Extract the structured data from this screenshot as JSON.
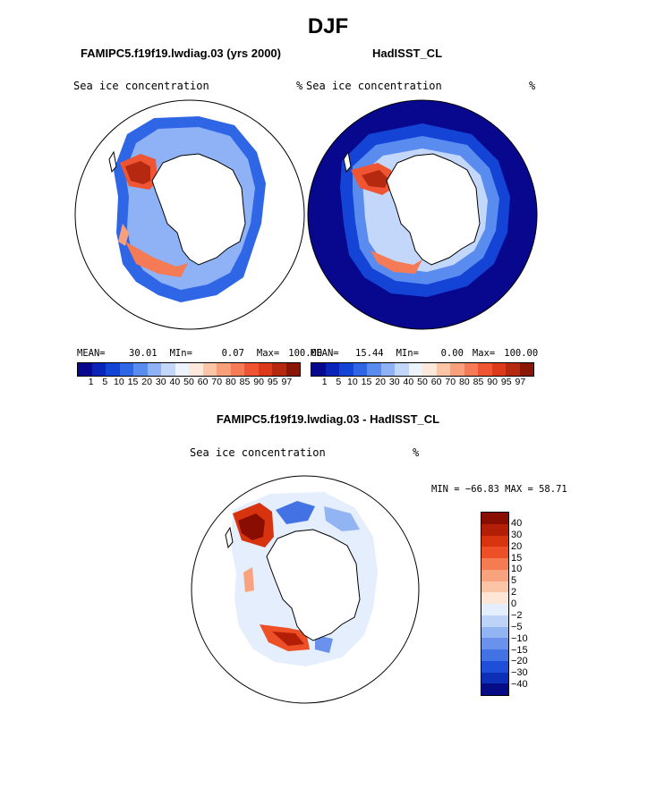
{
  "figure": {
    "title": "DJF"
  },
  "panels": [
    {
      "id": "model",
      "header": "FAMIPC5.f19f19.lwdiag.03 (yrs 2000)",
      "variable": "Sea ice concentration",
      "units": "%",
      "stats": {
        "mean_label": "MEAN=",
        "mean_value": "30.01",
        "min_label": "MIn=",
        "min_value": "0.07",
        "max_label": "Max=",
        "max_value": "100.00"
      }
    },
    {
      "id": "obs",
      "header": "HadISST_CL",
      "variable": "Sea ice concentration",
      "units": "%",
      "stats": {
        "mean_label": "MEAN=",
        "mean_value": "15.44",
        "min_label": "MIn=",
        "min_value": "0.00",
        "max_label": "Max=",
        "max_value": "100.00"
      }
    }
  ],
  "colorbar_abs": {
    "labels": [
      "1",
      "5",
      "10",
      "15",
      "20",
      "30",
      "40",
      "50",
      "60",
      "70",
      "80",
      "85",
      "90",
      "95",
      "97"
    ],
    "colors": [
      "#08088f",
      "#0a23b8",
      "#1444d6",
      "#2f66e6",
      "#5a8cf0",
      "#8fb2f6",
      "#c2d7fa",
      "#ecf3fd",
      "#fde9dc",
      "#fbc5a6",
      "#f8a07c",
      "#f47b56",
      "#ef5532",
      "#dc3a1a",
      "#b52910",
      "#8a1606"
    ]
  },
  "difference": {
    "header": "FAMIPC5.f19f19.lwdiag.03 - HadISST_CL",
    "variable": "Sea ice concentration",
    "units": "%",
    "minmax": "MIN = −66.83 MAX =  58.71",
    "colorbar": {
      "labels": [
        "40",
        "30",
        "20",
        "15",
        "10",
        "5",
        "2",
        "0",
        "−2",
        "−5",
        "−10",
        "−15",
        "−20",
        "−30",
        "−40"
      ],
      "colors": [
        "#8a0d02",
        "#b31f06",
        "#d6330e",
        "#ed4f26",
        "#f47b52",
        "#f8a27e",
        "#fbc4a6",
        "#fde6d6",
        "#e4eefc",
        "#bed3f8",
        "#93b4f2",
        "#6a92ec",
        "#4272e4",
        "#1f4fd8",
        "#0d2fb6",
        "#050c86"
      ]
    }
  }
}
